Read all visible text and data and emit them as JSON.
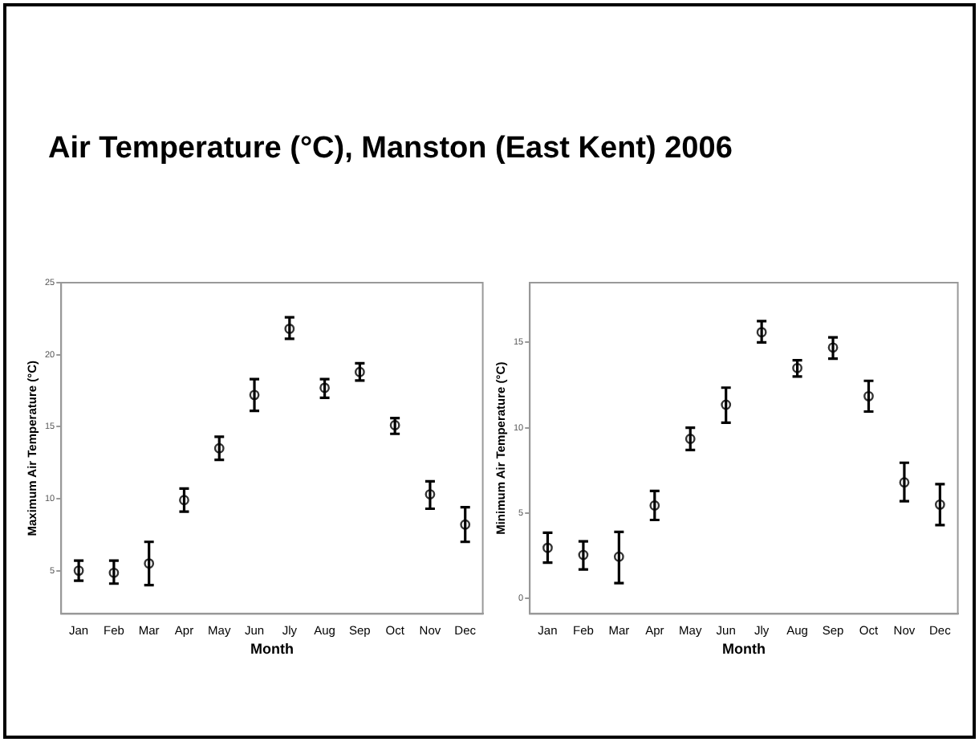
{
  "chart_data": [
    {
      "type": "scatter",
      "title": "Air Temperature (°C), Manston (East Kent) 2006",
      "xlabel": "Month",
      "ylabel": "Maximum Air Temperature (°C)",
      "categories": [
        "Jan",
        "Feb",
        "Mar",
        "Apr",
        "May",
        "Jun",
        "Jly",
        "Aug",
        "Sep",
        "Oct",
        "Nov",
        "Dec"
      ],
      "series": [
        {
          "color": "#333333",
          "values": [
            5.0,
            4.85,
            5.5,
            9.9,
            13.5,
            17.2,
            21.8,
            17.7,
            18.8,
            15.1,
            10.3,
            8.2
          ],
          "errors": [
            [
              4.3,
              5.7
            ],
            [
              4.1,
              5.7
            ],
            [
              4.0,
              7.0
            ],
            [
              9.1,
              10.7
            ],
            [
              12.7,
              14.3
            ],
            [
              16.1,
              18.3
            ],
            [
              21.1,
              22.6
            ],
            [
              17.0,
              18.3
            ],
            [
              18.2,
              19.4
            ],
            [
              14.5,
              15.6
            ],
            [
              9.3,
              11.2
            ],
            [
              7.0,
              9.4
            ]
          ]
        }
      ],
      "ylim": [
        2,
        25
      ],
      "yticks": [
        5,
        10,
        15,
        20,
        25
      ],
      "grid": false,
      "legend": false,
      "marker": "circle"
    },
    {
      "type": "scatter",
      "xlabel": "Month",
      "ylabel": "Minimum Air Temperature (°C)",
      "categories": [
        "Jan",
        "Feb",
        "Mar",
        "Apr",
        "May",
        "Jun",
        "Jly",
        "Aug",
        "Sep",
        "Oct",
        "Nov",
        "Dec"
      ],
      "series": [
        {
          "color": "#333333",
          "values": [
            2.97,
            2.55,
            2.45,
            5.45,
            9.35,
            11.35,
            15.6,
            13.5,
            14.7,
            11.85,
            6.8,
            5.5
          ],
          "errors": [
            [
              2.1,
              3.85
            ],
            [
              1.7,
              3.35
            ],
            [
              0.9,
              3.9
            ],
            [
              4.6,
              6.3
            ],
            [
              8.7,
              10.0
            ],
            [
              10.3,
              12.35
            ],
            [
              15.0,
              16.25
            ],
            [
              13.0,
              13.95
            ],
            [
              14.05,
              15.3
            ],
            [
              10.95,
              12.75
            ],
            [
              5.7,
              7.95
            ],
            [
              4.3,
              6.7
            ]
          ]
        }
      ],
      "ylim": [
        -0.9,
        18.5
      ],
      "yticks": [
        0,
        5,
        10,
        15
      ],
      "grid": false,
      "legend": false,
      "marker": "circle"
    }
  ]
}
